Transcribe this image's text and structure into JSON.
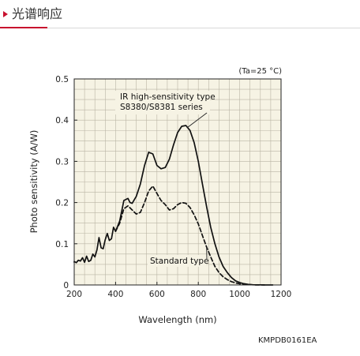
{
  "page": {
    "section_title": "光谱响应",
    "figure_code": "KMPDB0161EA",
    "accent_color": "#c8102e"
  },
  "chart_data": {
    "type": "line",
    "condition_label": "(Ta=25 °C)",
    "xlabel": "Wavelength (nm)",
    "ylabel": "Photo sensitivity (A/W)",
    "xlim": [
      200,
      1200
    ],
    "ylim": [
      0,
      0.5
    ],
    "x_ticks": [
      200,
      400,
      600,
      800,
      1000,
      1200
    ],
    "y_ticks": [
      0,
      0.1,
      0.2,
      0.3,
      0.4,
      0.5
    ],
    "x_tick_labels": [
      "200",
      "400",
      "600",
      "800",
      "1000",
      "1200"
    ],
    "y_tick_labels": [
      "0",
      "0.1",
      "0.2",
      "0.3",
      "0.4",
      "0.5"
    ],
    "grid": true,
    "plot_background": "#f6f3e4",
    "series": [
      {
        "name": "IR high-sensitivity type S8380/S8381 series",
        "label_lines": [
          "IR high-sensitivity type",
          "S8380/S8381 series"
        ],
        "style": "solid",
        "color": "#111111",
        "x": [
          190,
          200,
          210,
          220,
          230,
          240,
          250,
          260,
          270,
          280,
          290,
          300,
          310,
          320,
          330,
          340,
          350,
          360,
          370,
          380,
          390,
          400,
          420,
          440,
          460,
          470,
          480,
          500,
          520,
          540,
          560,
          580,
          600,
          620,
          640,
          660,
          680,
          700,
          720,
          740,
          760,
          780,
          800,
          820,
          840,
          860,
          880,
          900,
          920,
          940,
          960,
          980,
          1000,
          1020,
          1040,
          1060,
          1080,
          1100,
          1120,
          1140,
          1160
        ],
        "y": [
          0.055,
          0.057,
          0.054,
          0.06,
          0.058,
          0.066,
          0.055,
          0.07,
          0.057,
          0.06,
          0.075,
          0.068,
          0.085,
          0.115,
          0.09,
          0.088,
          0.11,
          0.125,
          0.108,
          0.112,
          0.14,
          0.13,
          0.155,
          0.205,
          0.21,
          0.2,
          0.198,
          0.215,
          0.245,
          0.29,
          0.322,
          0.318,
          0.29,
          0.282,
          0.285,
          0.305,
          0.34,
          0.37,
          0.385,
          0.387,
          0.375,
          0.345,
          0.3,
          0.245,
          0.19,
          0.14,
          0.1,
          0.068,
          0.045,
          0.03,
          0.018,
          0.01,
          0.006,
          0.003,
          0.0015,
          0.0006,
          0.0002,
          0.0001,
          0,
          0,
          0
        ]
      },
      {
        "name": "Standard type",
        "label_lines": [
          "Standard type"
        ],
        "style": "dashed",
        "color": "#111111",
        "x": [
          400,
          420,
          440,
          460,
          480,
          500,
          520,
          540,
          560,
          580,
          600,
          620,
          640,
          660,
          680,
          700,
          720,
          740,
          760,
          780,
          800,
          820,
          840,
          860,
          880,
          900,
          920,
          940,
          960,
          980,
          1000,
          1020,
          1040,
          1060,
          1080,
          1100,
          1120
        ],
        "y": [
          0.13,
          0.15,
          0.185,
          0.192,
          0.182,
          0.172,
          0.176,
          0.2,
          0.228,
          0.24,
          0.222,
          0.205,
          0.195,
          0.182,
          0.185,
          0.195,
          0.2,
          0.198,
          0.188,
          0.17,
          0.148,
          0.12,
          0.092,
          0.068,
          0.045,
          0.03,
          0.02,
          0.013,
          0.008,
          0.005,
          0.003,
          0.002,
          0.001,
          0.0005,
          0.0002,
          0.0001,
          0
        ]
      }
    ]
  }
}
